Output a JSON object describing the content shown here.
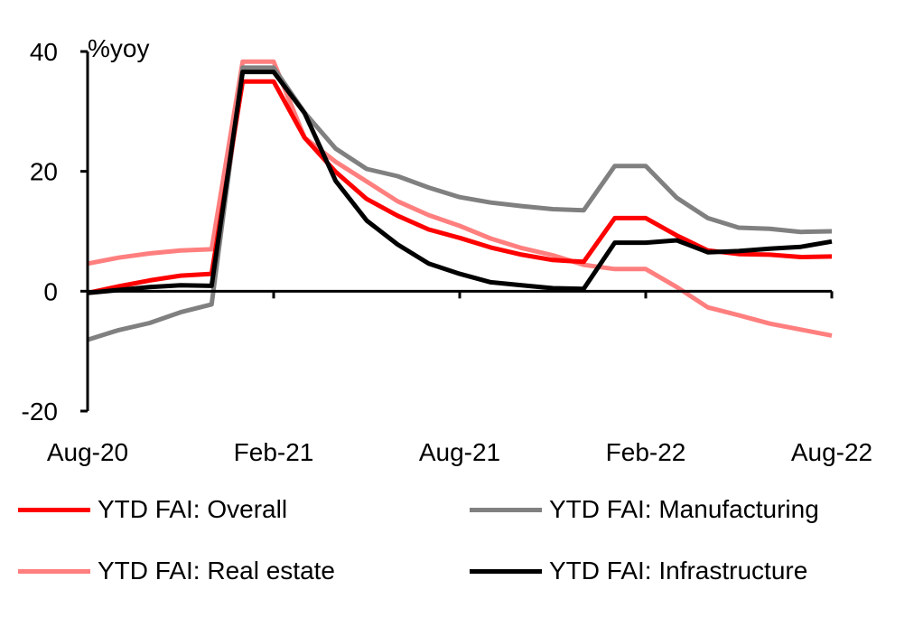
{
  "chart_data": {
    "type": "line",
    "title": "",
    "xlabel": "",
    "ylabel": "%yoy",
    "ylim": [
      -20,
      40
    ],
    "yticks": [
      40,
      20,
      0,
      -20
    ],
    "ytick_labels": [
      "40",
      "20",
      "0",
      "-20"
    ],
    "xtick_labels": [
      "Aug-20",
      "Feb-21",
      "Aug-21",
      "Feb-22",
      "Aug-22"
    ],
    "xtick_indices": [
      0,
      6,
      12,
      18,
      24
    ],
    "grid": false,
    "legend_position": "bottom",
    "x": [
      "Aug-20",
      "Sep-20",
      "Oct-20",
      "Nov-20",
      "Dec-20",
      "Jan-21",
      "Feb-21",
      "Mar-21",
      "Apr-21",
      "May-21",
      "Jun-21",
      "Jul-21",
      "Aug-21",
      "Sep-21",
      "Oct-21",
      "Nov-21",
      "Dec-21",
      "Jan-22",
      "Feb-22",
      "Mar-22",
      "Apr-22",
      "May-22",
      "Jun-22",
      "Jul-22",
      "Aug-22"
    ],
    "series": [
      {
        "name": "YTD FAI: Overall",
        "color": "#ff0000",
        "values": [
          -0.3,
          0.8,
          1.8,
          2.6,
          2.9,
          35.0,
          35.0,
          25.6,
          19.9,
          15.4,
          12.6,
          10.3,
          8.9,
          7.3,
          6.1,
          5.2,
          4.9,
          12.2,
          12.2,
          9.3,
          6.8,
          6.2,
          6.1,
          5.7,
          5.8
        ]
      },
      {
        "name": "YTD FAI: Manufacturing",
        "color": "#808080",
        "values": [
          -8.1,
          -6.5,
          -5.3,
          -3.5,
          -2.2,
          37.3,
          37.3,
          29.8,
          23.8,
          20.4,
          19.2,
          17.3,
          15.7,
          14.8,
          14.2,
          13.7,
          13.5,
          20.9,
          20.9,
          15.6,
          12.2,
          10.6,
          10.4,
          9.9,
          10.0
        ]
      },
      {
        "name": "YTD FAI: Real estate",
        "color": "#ff7f7f",
        "values": [
          4.6,
          5.6,
          6.3,
          6.8,
          7.0,
          38.3,
          38.3,
          25.6,
          21.6,
          18.3,
          15.0,
          12.7,
          10.9,
          8.8,
          7.2,
          6.0,
          4.4,
          3.7,
          3.7,
          0.7,
          -2.7,
          -4.0,
          -5.4,
          -6.4,
          -7.4
        ]
      },
      {
        "name": "YTD FAI: Infrastructure",
        "color": "#000000",
        "values": [
          -0.3,
          0.2,
          0.7,
          1.0,
          0.9,
          36.6,
          36.6,
          29.7,
          18.4,
          11.8,
          7.8,
          4.6,
          2.9,
          1.5,
          1.0,
          0.5,
          0.4,
          8.1,
          8.1,
          8.5,
          6.5,
          6.7,
          7.1,
          7.4,
          8.3
        ]
      }
    ]
  },
  "legend": [
    {
      "label": "YTD FAI: Overall",
      "color": "#ff0000"
    },
    {
      "label": "YTD FAI: Manufacturing",
      "color": "#808080"
    },
    {
      "label": "YTD FAI: Real estate",
      "color": "#ff7f7f"
    },
    {
      "label": "YTD FAI: Infrastructure",
      "color": "#000000"
    }
  ]
}
